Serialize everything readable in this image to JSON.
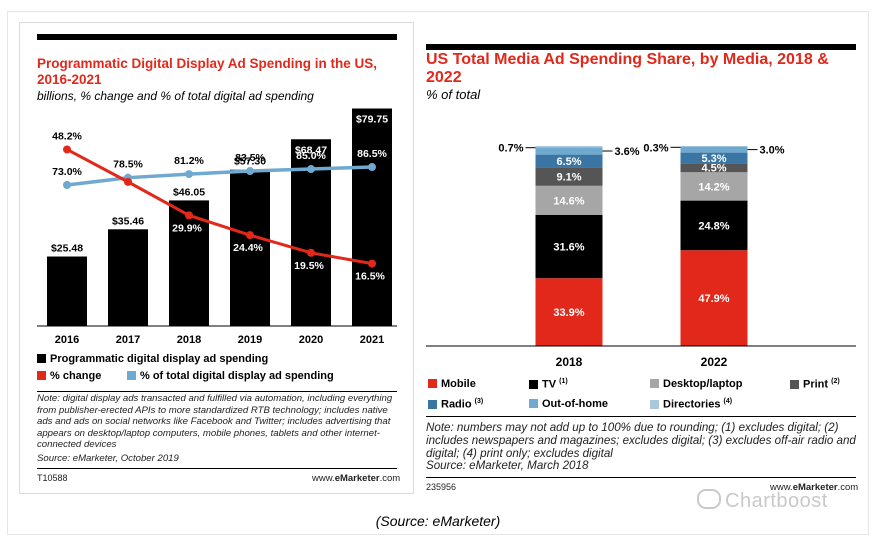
{
  "source_caption": "(Source: eMarketer)",
  "watermark": "Chartboost",
  "colors": {
    "red": "#e2281b",
    "black": "#000000",
    "light_blue": "#6fa9cf",
    "mobile": "#e2281b",
    "tv": "#000000",
    "desktop": "#a6a6a6",
    "print": "#555555",
    "radio": "#3a75a3",
    "out_of_home": "#6fa9cf",
    "directories": "#a9c8dc"
  },
  "chart_data": [
    {
      "type": "bar",
      "title": "Programmatic Digital Display Ad Spending in the US, 2016-2021",
      "subtitle": "billions, % change and % of total digital ad spending",
      "categories": [
        "2016",
        "2017",
        "2018",
        "2019",
        "2020",
        "2021"
      ],
      "series": [
        {
          "name": "Programmatic digital display ad spending",
          "type": "bar",
          "values": [
            25.48,
            35.46,
            46.05,
            57.3,
            68.47,
            79.75
          ],
          "labels": [
            "$25.48",
            "$35.46",
            "$46.05",
            "$57.30",
            "$68.47",
            "$79.75"
          ]
        },
        {
          "name": "% change",
          "type": "line",
          "values": [
            48.2,
            39.2,
            29.9,
            24.4,
            19.5,
            16.5
          ],
          "labels": [
            "48.2%",
            "39.2%",
            "29.9%",
            "24.4%",
            "19.5%",
            "16.5%"
          ]
        },
        {
          "name": "% of total digital display ad spending",
          "type": "line",
          "values": [
            73.0,
            78.5,
            81.2,
            83.5,
            85.0,
            86.5
          ],
          "labels": [
            "73.0%",
            "78.5%",
            "81.2%",
            "83.5%",
            "85.0%",
            "86.5%"
          ]
        }
      ],
      "legend": [
        {
          "label": "Programmatic digital display ad spending",
          "color": "#000000"
        },
        {
          "label": "% change",
          "color": "#e2281b"
        },
        {
          "label": "% of total digital display ad spending",
          "color": "#6fa9cf"
        }
      ],
      "note": "Note: digital display ads transacted and fulfilled via automation, including everything from publisher-erected APIs to more standardized RTB technology; includes native ads and ads on social networks like Facebook and Twitter; includes advertising that appears on desktop/laptop computers, mobile phones, tablets and other internet-connected devices",
      "source": "Source: eMarketer, October 2019",
      "code": "T10588",
      "brand_prefix": "www.",
      "brand_name": "eMarketer",
      "brand_suffix": ".com"
    },
    {
      "type": "bar",
      "stacked": true,
      "title": "US Total Media Ad Spending Share, by Media, 2018 & 2022",
      "subtitle": "% of total",
      "categories": [
        "2018",
        "2022"
      ],
      "series": [
        {
          "name": "Mobile",
          "values": [
            33.9,
            47.9
          ],
          "labels": [
            "33.9%",
            "47.9%"
          ]
        },
        {
          "name": "TV",
          "values": [
            31.6,
            24.8
          ],
          "labels": [
            "31.6%",
            "24.8%"
          ]
        },
        {
          "name": "Desktop/laptop",
          "values": [
            14.6,
            14.2
          ],
          "labels": [
            "14.6%",
            "14.2%"
          ]
        },
        {
          "name": "Print",
          "values": [
            9.1,
            4.5
          ],
          "labels": [
            "9.1%",
            "4.5%"
          ]
        },
        {
          "name": "Radio",
          "values": [
            6.5,
            5.3
          ],
          "labels": [
            "6.5%",
            "5.3%"
          ]
        },
        {
          "name": "Out-of-home",
          "values": [
            3.6,
            3.0
          ],
          "labels": [
            "3.6%",
            "3.0%"
          ]
        },
        {
          "name": "Directories",
          "values": [
            0.7,
            0.3
          ],
          "labels": [
            "0.7%",
            "0.3%"
          ]
        }
      ],
      "legend": [
        {
          "label": "Mobile",
          "color": "#e2281b",
          "sup": ""
        },
        {
          "label": "TV",
          "color": "#000000",
          "sup": "(1)"
        },
        {
          "label": "Desktop/laptop",
          "color": "#a6a6a6",
          "sup": ""
        },
        {
          "label": "Print",
          "color": "#555555",
          "sup": "(2)"
        },
        {
          "label": "Radio",
          "color": "#3a75a3",
          "sup": "(3)"
        },
        {
          "label": "Out-of-home",
          "color": "#6fa9cf",
          "sup": ""
        },
        {
          "label": "Directories",
          "color": "#a9c8dc",
          "sup": "(4)"
        }
      ],
      "note": "Note: numbers may not add up to 100% due to rounding; (1) excludes digital; (2) includes newspapers and magazines; excludes digital; (3) excludes off-air radio and digital; (4) print only; excludes digital",
      "source": "Source: eMarketer, March 2018",
      "code": "235956",
      "brand_prefix": "www.",
      "brand_name": "eMarketer",
      "brand_suffix": ".com"
    }
  ]
}
